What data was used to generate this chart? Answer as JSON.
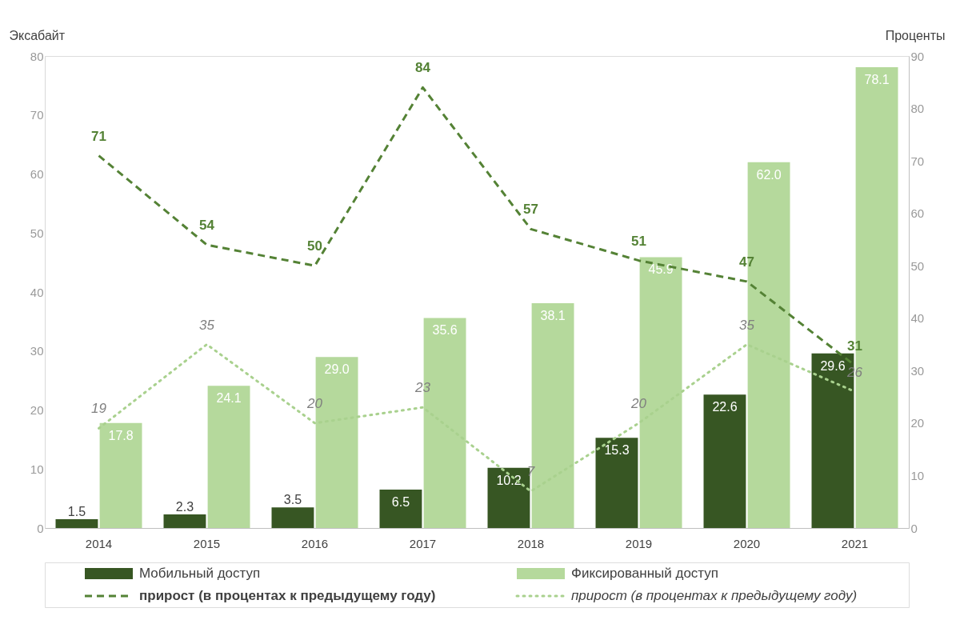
{
  "chart_data": {
    "type": "bar",
    "categories": [
      "2014",
      "2015",
      "2016",
      "2017",
      "2018",
      "2019",
      "2020",
      "2021"
    ],
    "ylabel": "Эксабайт",
    "y2label": "Проценты",
    "ylim": [
      0,
      80
    ],
    "yticks": [
      0,
      10,
      20,
      30,
      40,
      50,
      60,
      70,
      80
    ],
    "y2lim": [
      0,
      90
    ],
    "y2ticks": [
      0,
      10,
      20,
      30,
      40,
      50,
      60,
      70,
      80,
      90
    ],
    "series": [
      {
        "name": "Мобильный доступ",
        "color": "#375623",
        "values": [
          1.5,
          2.3,
          3.5,
          6.5,
          10.2,
          15.3,
          22.6,
          29.6
        ]
      },
      {
        "name": "Фиксированный доступ",
        "color": "#b5d99c",
        "values": [
          17.8,
          24.1,
          29.0,
          35.6,
          38.1,
          45.9,
          62.0,
          78.1
        ],
        "value_labels": [
          "17.8",
          "24.1",
          "29.0",
          "35.6",
          "38.1",
          "45.9",
          "62.0",
          "78.1"
        ]
      },
      {
        "name": "прирост (в процентах к предыдущему году)",
        "type": "line",
        "axis": "y2",
        "line_style": "dashed",
        "color": "#548235",
        "values": [
          71,
          54,
          50,
          84,
          57,
          51,
          47,
          31
        ]
      },
      {
        "name": "прирост  (в процентах к предыдущему году)",
        "type": "line",
        "axis": "y2",
        "line_style": "dotted",
        "color": "#a9d18e",
        "values": [
          19,
          35,
          20,
          23,
          7,
          20,
          35,
          26
        ]
      }
    ],
    "data_labels": true,
    "grid": false,
    "legend": "bottom",
    "marker": "none"
  }
}
